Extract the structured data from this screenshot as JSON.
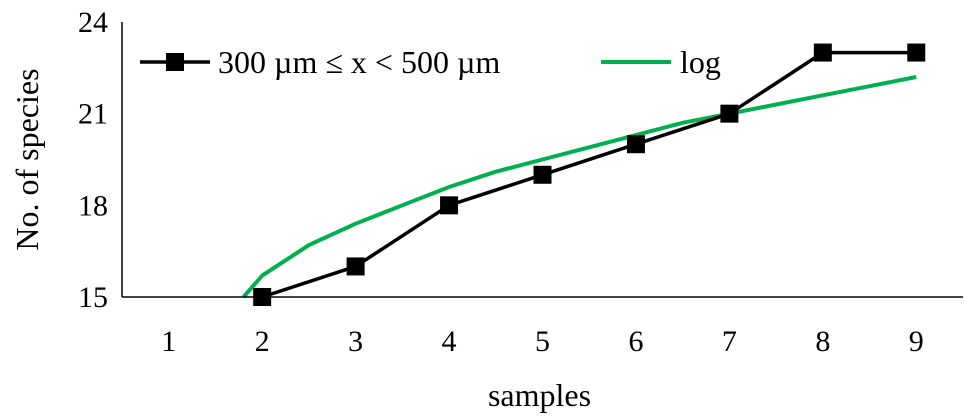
{
  "chart_data": {
    "type": "line",
    "xlabel": "samples",
    "ylabel": "No. of species",
    "categories": [
      "1",
      "2",
      "3",
      "4",
      "5",
      "6",
      "7",
      "8",
      "9"
    ],
    "ylim": [
      15,
      24
    ],
    "yticks": [
      "15",
      "18",
      "21",
      "24"
    ],
    "grid": false,
    "legend_position": "top",
    "series": [
      {
        "name": "300 µm ≤ x < 500 µm",
        "color": "#000000",
        "marker": "square",
        "x": [
          2,
          3,
          4,
          5,
          6,
          7,
          8,
          9
        ],
        "values": [
          15,
          16,
          18,
          19,
          20,
          21,
          23,
          23
        ]
      },
      {
        "name": "log",
        "color": "#00B050",
        "marker": "none",
        "curve": "logarithmic trendline",
        "x": [
          1.8,
          2,
          2.5,
          3,
          3.5,
          4,
          4.5,
          5,
          5.5,
          6,
          6.5,
          7,
          7.5,
          8,
          8.5,
          9
        ],
        "values": [
          15.0,
          15.7,
          16.7,
          17.4,
          18.0,
          18.6,
          19.1,
          19.5,
          19.9,
          20.3,
          20.7,
          21.0,
          21.3,
          21.6,
          21.9,
          22.2
        ]
      }
    ]
  }
}
